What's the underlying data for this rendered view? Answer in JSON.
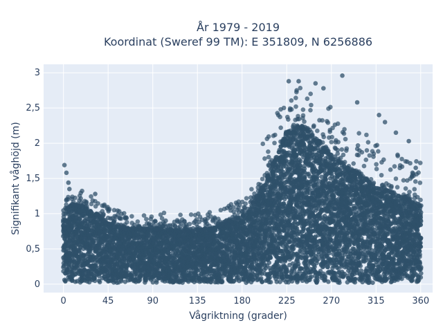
{
  "chart_data": {
    "type": "scatter",
    "title_line1": "År 1979 - 2019",
    "title_line2": "Koordinat (Sweref 99 TM): E 351809, N 6256886",
    "xlabel": "Vågriktning (grader)",
    "ylabel": "Signifikant våghöjd (m)",
    "xlim": [
      -20,
      372
    ],
    "ylim": [
      -0.12,
      3.12
    ],
    "x_ticks": [
      0,
      45,
      90,
      135,
      180,
      225,
      270,
      315,
      360
    ],
    "x_tick_labels": [
      "0",
      "45",
      "90",
      "135",
      "180",
      "225",
      "270",
      "315",
      "360"
    ],
    "y_ticks": [
      0,
      0.5,
      1,
      1.5,
      2,
      2.5,
      3
    ],
    "y_tick_labels": [
      "0",
      "0,5",
      "1",
      "1,5",
      "2",
      "2,5",
      "3"
    ],
    "grid": true,
    "plot_background": "#e5ecf6",
    "marker_color": "#2f5069",
    "envelope": {
      "x": [
        0,
        10,
        20,
        30,
        45,
        60,
        90,
        120,
        150,
        180,
        195,
        210,
        225,
        240,
        255,
        270,
        285,
        300,
        315,
        330,
        345,
        360
      ],
      "y_max": [
        1.05,
        1.12,
        1.1,
        1.02,
        0.85,
        0.78,
        0.78,
        0.75,
        0.78,
        0.95,
        1.2,
        1.65,
        2.15,
        2.25,
        2.05,
        1.85,
        1.65,
        1.55,
        1.35,
        1.3,
        1.2,
        1.1
      ]
    },
    "outliers": [
      {
        "x": 1,
        "y": 1.69
      },
      {
        "x": 3,
        "y": 1.58
      },
      {
        "x": 5,
        "y": 1.44
      },
      {
        "x": 6,
        "y": 1.35
      },
      {
        "x": 32,
        "y": 1.28
      },
      {
        "x": 45,
        "y": 0.94
      },
      {
        "x": 103,
        "y": 0.9
      },
      {
        "x": 227,
        "y": 2.88
      },
      {
        "x": 237,
        "y": 2.88
      },
      {
        "x": 235,
        "y": 2.75
      },
      {
        "x": 254,
        "y": 2.85
      },
      {
        "x": 262,
        "y": 2.78
      },
      {
        "x": 281,
        "y": 2.96
      },
      {
        "x": 296,
        "y": 2.58
      },
      {
        "x": 318,
        "y": 2.4
      },
      {
        "x": 324,
        "y": 2.3
      },
      {
        "x": 335,
        "y": 2.15
      },
      {
        "x": 348,
        "y": 2.03
      },
      {
        "x": 355,
        "y": 1.65
      }
    ]
  }
}
